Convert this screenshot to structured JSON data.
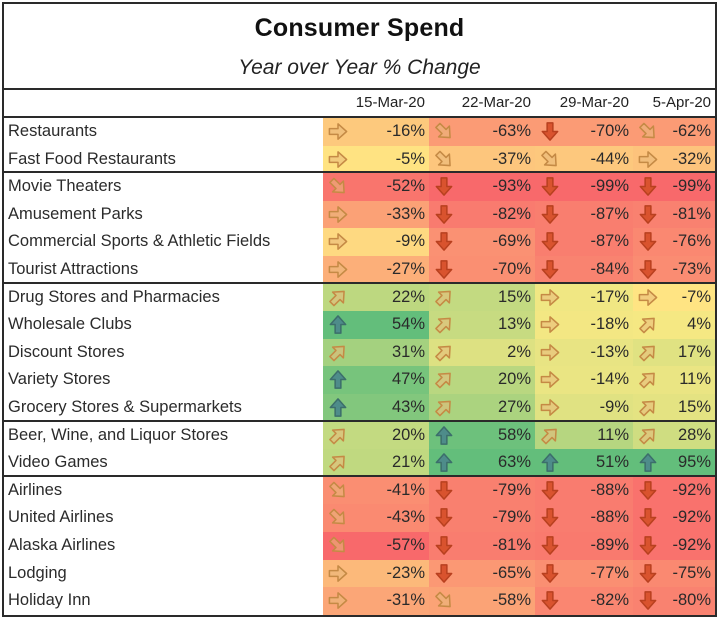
{
  "title": "Consumer Spend",
  "subtitle": "Year over Year % Change",
  "columns": [
    "15-Mar-20",
    "22-Mar-20",
    "29-Mar-20",
    "5-Apr-20"
  ],
  "groups": [
    {
      "rows": [
        {
          "label": "Restaurants",
          "values": [
            -16,
            -63,
            -70,
            -62
          ]
        },
        {
          "label": "Fast Food Restaurants",
          "values": [
            -5,
            -37,
            -44,
            -32
          ]
        }
      ]
    },
    {
      "rows": [
        {
          "label": "Movie Theaters",
          "values": [
            -52,
            -93,
            -99,
            -99
          ]
        },
        {
          "label": "Amusement Parks",
          "values": [
            -33,
            -82,
            -87,
            -81
          ]
        },
        {
          "label": "Commercial Sports & Athletic Fields",
          "values": [
            -9,
            -69,
            -87,
            -76
          ]
        },
        {
          "label": "Tourist Attractions",
          "values": [
            -27,
            -70,
            -84,
            -73
          ]
        }
      ]
    },
    {
      "rows": [
        {
          "label": "Drug Stores and Pharmacies",
          "values": [
            22,
            15,
            -17,
            -7
          ]
        },
        {
          "label": "Wholesale Clubs",
          "values": [
            54,
            13,
            -18,
            4
          ]
        },
        {
          "label": "Discount Stores",
          "values": [
            31,
            2,
            -13,
            17
          ]
        },
        {
          "label": "Variety Stores",
          "values": [
            47,
            20,
            -14,
            11
          ]
        },
        {
          "label": "Grocery Stores & Supermarkets",
          "values": [
            43,
            27,
            -9,
            15
          ]
        }
      ]
    },
    {
      "rows": [
        {
          "label": "Beer, Wine, and Liquor Stores",
          "values": [
            20,
            58,
            11,
            28
          ]
        },
        {
          "label": "Video Games",
          "values": [
            21,
            63,
            51,
            95
          ]
        }
      ]
    },
    {
      "rows": [
        {
          "label": "Airlines",
          "values": [
            -41,
            -79,
            -88,
            -92
          ]
        },
        {
          "label": "United Airlines",
          "values": [
            -43,
            -79,
            -88,
            -92
          ]
        },
        {
          "label": "Alaska Airlines",
          "values": [
            -57,
            -81,
            -89,
            -92
          ]
        },
        {
          "label": "Lodging",
          "values": [
            -23,
            -65,
            -77,
            -75
          ]
        },
        {
          "label": "Holiday Inn",
          "values": [
            -31,
            -58,
            -82,
            -80
          ]
        }
      ]
    }
  ],
  "icon_legend": {
    "arrow-up-icon": "value >= ~40%",
    "arrow-up-right-icon": "value ~0% to ~40%",
    "arrow-right-icon": "value ~-35% to ~0%",
    "arrow-down-right-icon": "value ~-65% to ~-35%",
    "arrow-down-icon": "value <= ~-65%"
  },
  "colors": {
    "high": "#63be7b",
    "mid": "#ffeb84",
    "low": "#f8696b",
    "icon_up": "#4e8c8a",
    "icon_tan": "#e7b87a",
    "icon_down": "#d9532e",
    "border": "#2a2a2a"
  }
}
